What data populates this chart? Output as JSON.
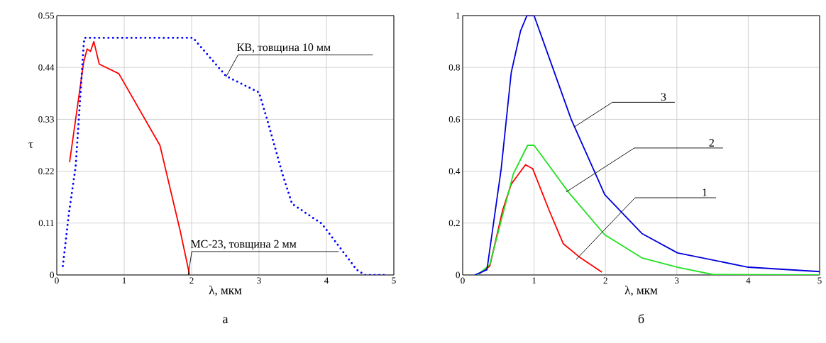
{
  "chart_data": [
    {
      "type": "line",
      "xlabel": "λ, мкм",
      "ylabel": "τ",
      "xlim": [
        0,
        5
      ],
      "ylim": [
        0,
        0.55
      ],
      "xticks": [
        0,
        1,
        2,
        3,
        4,
        5
      ],
      "yticks": [
        0,
        0.11,
        0.22,
        0.33,
        0.44,
        0.55
      ],
      "grid": true,
      "marker": "none",
      "series": [
        {
          "color": "#ff0000",
          "line_style": "solid",
          "x": [
            0.19,
            0.4,
            0.45,
            0.5,
            0.55,
            0.63,
            0.92,
            1.53,
            1.83,
            1.97
          ],
          "values": [
            0.239,
            0.452,
            0.479,
            0.474,
            0.495,
            0.447,
            0.427,
            0.275,
            0.094,
            0.0
          ]
        },
        {
          "color": "#0000ff",
          "line_style": "dotted",
          "x": [
            0.09,
            0.18,
            0.28,
            0.4,
            0.41,
            2.02,
            2.51,
            3.0,
            3.13,
            3.35,
            3.49,
            3.93,
            4.45,
            4.57,
            4.9
          ],
          "values": [
            0.019,
            0.131,
            0.23,
            0.49,
            0.503,
            0.503,
            0.422,
            0.387,
            0.325,
            0.213,
            0.151,
            0.109,
            0.011,
            0.0,
            0.0
          ]
        }
      ],
      "annotations": [
        {
          "text": "КВ, товщина 10 мм",
          "x": 2.51,
          "y": 0.42
        },
        {
          "text": "МС-23, товщина 2 мм",
          "x": 1.95,
          "y": 0.0
        },
        "а"
      ]
    },
    {
      "type": "line",
      "xlabel": "λ, мкм",
      "xlim": [
        0,
        5
      ],
      "ylim": [
        0,
        1
      ],
      "xticks": [
        0,
        1,
        2,
        3,
        4,
        5
      ],
      "yticks": [
        0,
        0.2,
        0.4,
        0.6,
        0.8,
        1
      ],
      "grid": true,
      "marker": "none",
      "series": [
        {
          "color": "#ff0000",
          "x": [
            0.21,
            0.38,
            0.56,
            0.68,
            0.88,
            0.98,
            1.21,
            1.41,
            1.65,
            1.95
          ],
          "values": [
            0,
            0.034,
            0.25,
            0.35,
            0.425,
            0.41,
            0.25,
            0.12,
            0.066,
            0.011
          ]
        },
        {
          "color": "#22e022",
          "x": [
            0.21,
            0.38,
            0.54,
            0.71,
            0.91,
            1.0,
            1.48,
            1.99,
            2.51,
            3.01,
            3.5,
            5
          ],
          "values": [
            0,
            0.04,
            0.21,
            0.39,
            0.5,
            0.5,
            0.32,
            0.155,
            0.066,
            0.03,
            0.002,
            0
          ]
        },
        {
          "color": "#0000dd",
          "x": [
            0.17,
            0.34,
            0.54,
            0.68,
            0.81,
            0.9,
            1.0,
            1.52,
            1.99,
            2.51,
            3.01,
            4.0,
            5.0
          ],
          "values": [
            0,
            0.02,
            0.41,
            0.78,
            0.94,
            1.0,
            1.0,
            0.6,
            0.31,
            0.16,
            0.085,
            0.03,
            0.013
          ]
        }
      ],
      "annotations": [
        {
          "text": "3",
          "x": 1.56,
          "y": 0.57
        },
        {
          "text": "2",
          "x": 1.45,
          "y": 0.32
        },
        {
          "text": "1",
          "x": 1.59,
          "y": 0.06
        },
        "б"
      ]
    }
  ]
}
